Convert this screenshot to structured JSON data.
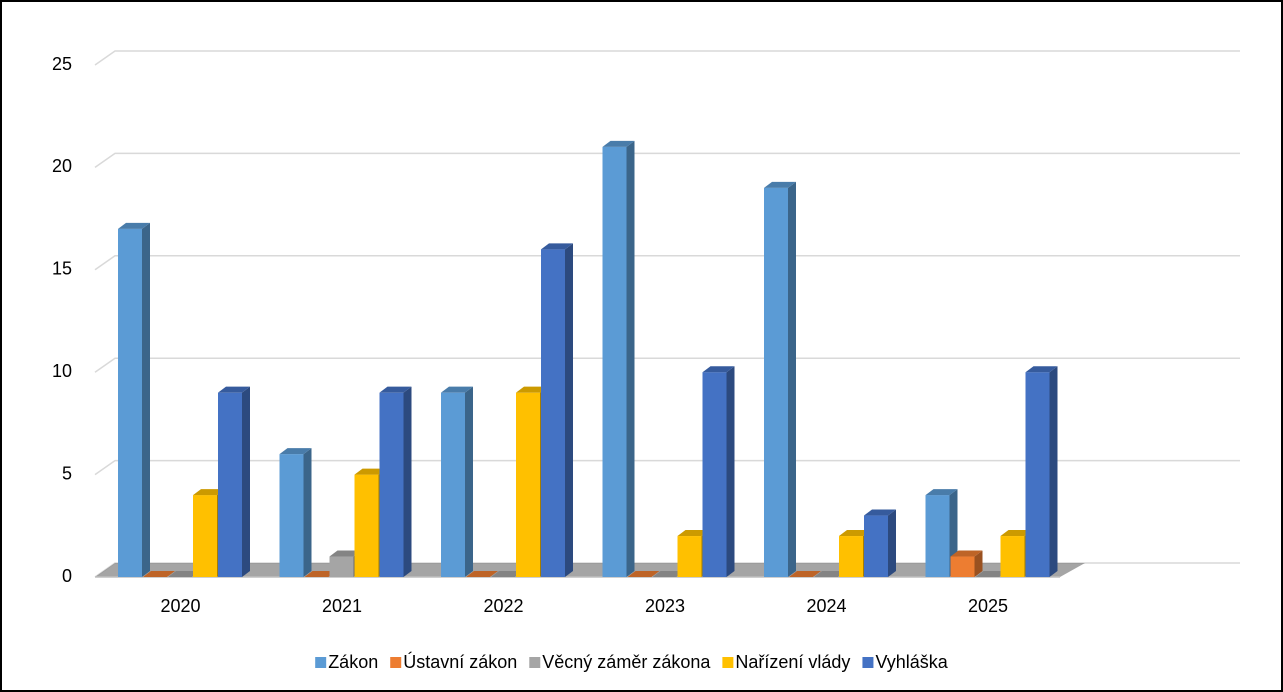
{
  "chart_data": {
    "type": "bar3d",
    "categories": [
      "2020",
      "2021",
      "2022",
      "2023",
      "2024",
      "2025"
    ],
    "series": [
      {
        "name": "Zákon",
        "color": "#5b9bd5",
        "values": [
          17,
          6,
          9,
          21,
          19,
          4
        ]
      },
      {
        "name": "Ústavní zákon",
        "color": "#ed7d31",
        "values": [
          0,
          0,
          0,
          0,
          0,
          1
        ]
      },
      {
        "name": "Věcný záměr zákona",
        "color": "#a5a5a5",
        "values": [
          0,
          1,
          0,
          0,
          0,
          0
        ]
      },
      {
        "name": "Nařízení vlády",
        "color": "#ffc000",
        "values": [
          4,
          5,
          9,
          2,
          2,
          2
        ]
      },
      {
        "name": "Vyhláška",
        "color": "#4472c4",
        "values": [
          9,
          9,
          16,
          10,
          3,
          10
        ]
      }
    ],
    "ylim": [
      0,
      25
    ],
    "yticks": [
      0,
      5,
      10,
      15,
      20,
      25
    ],
    "grid": true,
    "legend": "bottom"
  }
}
